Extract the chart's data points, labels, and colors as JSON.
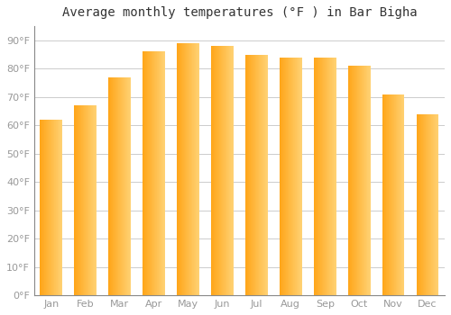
{
  "title": "Average monthly temperatures (°F ) in Bar Bigha",
  "months": [
    "Jan",
    "Feb",
    "Mar",
    "Apr",
    "May",
    "Jun",
    "Jul",
    "Aug",
    "Sep",
    "Oct",
    "Nov",
    "Dec"
  ],
  "values": [
    62,
    67,
    77,
    86,
    89,
    88,
    85,
    84,
    84,
    81,
    71,
    64
  ],
  "ylim": [
    0,
    95
  ],
  "yticks": [
    0,
    10,
    20,
    30,
    40,
    50,
    60,
    70,
    80,
    90
  ],
  "ytick_labels": [
    "0°F",
    "10°F",
    "20°F",
    "30°F",
    "40°F",
    "50°F",
    "60°F",
    "70°F",
    "80°F",
    "90°F"
  ],
  "background_color": "#ffffff",
  "grid_color": "#cccccc",
  "title_fontsize": 10,
  "tick_fontsize": 8,
  "bar_width": 0.65,
  "bar_color_left": "#F5A623",
  "bar_color_right": "#FFD580",
  "bar_color_center": "#FFC84A"
}
